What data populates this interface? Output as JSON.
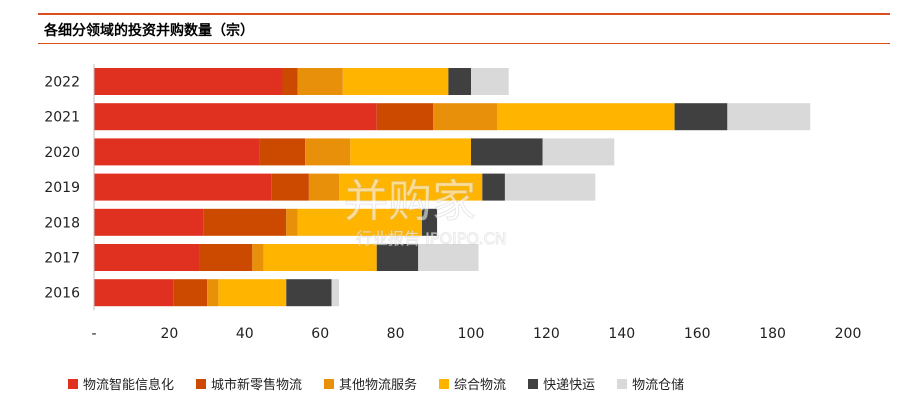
{
  "title": "各细分领域的投资并购数量（宗）",
  "watermark": {
    "main": "并购家",
    "sub": "行业报告 IPOIPO.CN"
  },
  "chart_data": {
    "type": "bar",
    "orientation": "horizontal",
    "stacked": true,
    "categories": [
      "2022",
      "2021",
      "2020",
      "2019",
      "2018",
      "2017",
      "2016"
    ],
    "xlim": [
      0,
      200
    ],
    "xticks": [
      "-",
      "20",
      "40",
      "60",
      "80",
      "100",
      "120",
      "140",
      "160",
      "180",
      "200"
    ],
    "xtick_values": [
      0,
      20,
      40,
      60,
      80,
      100,
      120,
      140,
      160,
      180,
      200
    ],
    "legend_position": "bottom",
    "grid": false,
    "series": [
      {
        "name": "物流智能信息化",
        "color": "#e03020",
        "values": [
          50,
          75,
          44,
          47,
          29,
          28,
          21
        ]
      },
      {
        "name": "城市新零售物流",
        "color": "#cc4a00",
        "values": [
          4,
          15,
          12,
          10,
          22,
          14,
          9
        ]
      },
      {
        "name": "其他物流服务",
        "color": "#e8900a",
        "values": [
          12,
          17,
          12,
          8,
          3,
          3,
          3
        ]
      },
      {
        "name": "综合物流",
        "color": "#ffb400",
        "values": [
          28,
          47,
          32,
          38,
          33,
          30,
          18
        ]
      },
      {
        "name": "快递快运",
        "color": "#404040",
        "values": [
          6,
          14,
          19,
          6,
          4,
          11,
          12
        ]
      },
      {
        "name": "物流仓储",
        "color": "#d9d9d9",
        "values": [
          10,
          22,
          19,
          24,
          0,
          16,
          2
        ]
      }
    ]
  }
}
